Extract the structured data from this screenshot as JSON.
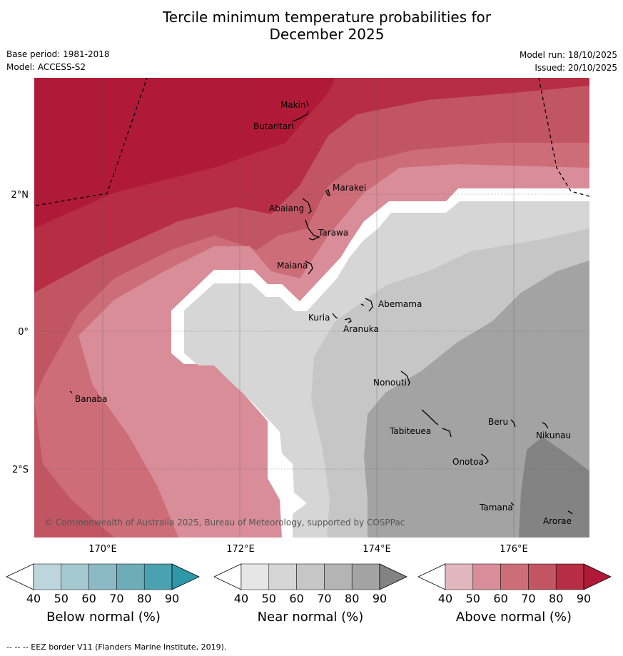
{
  "header": {
    "title_line1": "Tercile minimum temperature probabilities for",
    "title_line2": "December 2025",
    "base_period": "Base period: 1981-2018",
    "model": "Model: ACCESS-S2",
    "model_run": "Model run: 18/10/2025",
    "issued": "Issued: 20/10/2025"
  },
  "map": {
    "lat_labels": [
      "2°N",
      "0°",
      "2°S"
    ],
    "lon_labels": [
      "170°E",
      "172°E",
      "174°E",
      "176°E"
    ],
    "places": [
      "Makin",
      "Butaritari",
      "Marakei",
      "Abaiang",
      "Tarawa",
      "Maiana",
      "Abemama",
      "Kuria",
      "Aranuka",
      "Banaba",
      "Nonouti",
      "Beru",
      "Nikunau",
      "Tabiteuea",
      "Onotoa",
      "Tamana",
      "Arorae"
    ],
    "copyright": "© Commonwealth of Australia 2025, Bureau of Meteorology, supported by COSPPac"
  },
  "colorbars": [
    {
      "title": "Below normal (%)",
      "ticks": [
        "40",
        "50",
        "60",
        "70",
        "80",
        "90"
      ],
      "colors": [
        "#ffffff",
        "#bdd5dd",
        "#a5c9d1",
        "#8bbac5",
        "#6dadba",
        "#4aa2b0",
        "#2e97a8"
      ]
    },
    {
      "title": "Near normal (%)",
      "ticks": [
        "40",
        "50",
        "60",
        "70",
        "80",
        "90"
      ],
      "colors": [
        "#ffffff",
        "#e6e6e6",
        "#d6d6d6",
        "#c6c6c6",
        "#b4b4b4",
        "#a3a3a3",
        "#838383"
      ]
    },
    {
      "title": "Above normal (%)",
      "ticks": [
        "40",
        "50",
        "60",
        "70",
        "80",
        "90"
      ],
      "colors": [
        "#ffffff",
        "#e2b6bd",
        "#d88d98",
        "#cc6d78",
        "#c25562",
        "#b72e44",
        "#b01a38"
      ]
    }
  ],
  "footer": "--  --  -- EEZ border V11 (Flanders Marine Institute, 2019)."
}
